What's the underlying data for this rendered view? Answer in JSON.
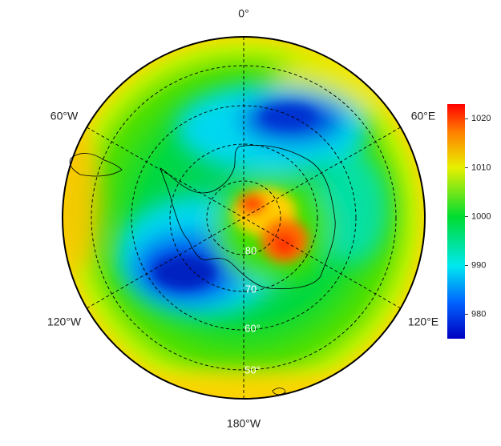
{
  "map": {
    "longitude_labels": [
      "0°",
      "60°E",
      "120°E",
      "180°W",
      "120°W",
      "60°W"
    ],
    "latitude_labels": [
      "80",
      "70",
      "60°",
      "50°"
    ],
    "colorbar": {
      "lim": [
        975,
        1023
      ],
      "ticks": [
        980,
        990,
        1000,
        1010,
        1020
      ]
    }
  }
}
